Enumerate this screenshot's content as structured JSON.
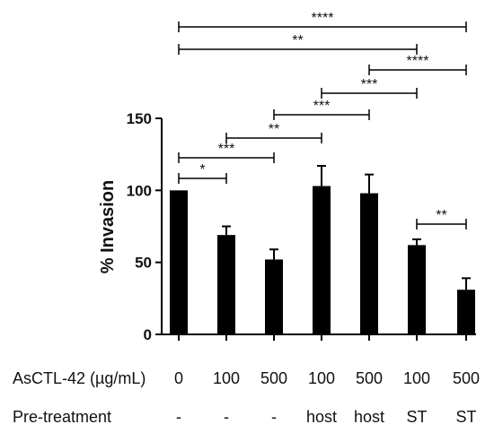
{
  "chart_data": {
    "type": "bar",
    "ylabel": "% Invasion",
    "ylim": [
      0,
      150
    ],
    "yticks": [
      0,
      50,
      100,
      150
    ],
    "grid": false,
    "categories": [
      "0",
      "100",
      "500",
      "100",
      "500",
      "100",
      "500"
    ],
    "values": [
      100,
      69,
      52,
      103,
      98,
      62,
      31
    ],
    "errors": [
      0,
      6,
      7,
      14,
      13,
      4,
      8
    ],
    "row_labels": [
      {
        "label": "AsCTL-42 (µg/mL)",
        "values": [
          "0",
          "100",
          "500",
          "100",
          "500",
          "100",
          "500"
        ]
      },
      {
        "label": "Pre-treatment",
        "values": [
          "-",
          "-",
          "-",
          "host",
          "host",
          "ST",
          "ST"
        ]
      }
    ],
    "significance": [
      {
        "from": 0,
        "to": 1,
        "label": "*"
      },
      {
        "from": 0,
        "to": 2,
        "label": "***"
      },
      {
        "from": 1,
        "to": 3,
        "label": "**"
      },
      {
        "from": 2,
        "to": 4,
        "label": "***"
      },
      {
        "from": 3,
        "to": 5,
        "label": "***"
      },
      {
        "from": 4,
        "to": 6,
        "label": "****"
      },
      {
        "from": 0,
        "to": 5,
        "label": "**"
      },
      {
        "from": 0,
        "to": 6,
        "label": "****"
      },
      {
        "from": 5,
        "to": 6,
        "label": "**"
      }
    ],
    "bar_color": "#000000"
  }
}
